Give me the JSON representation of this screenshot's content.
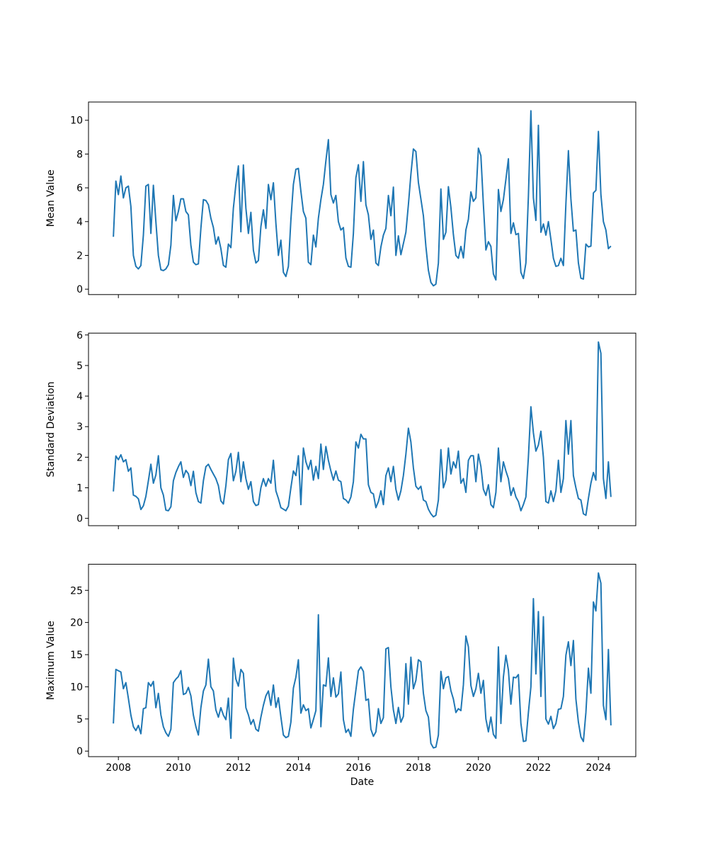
{
  "chart_data": {
    "type": "line",
    "title": "",
    "line_color": "#1f77b4",
    "background_color": "#ffffff",
    "text_color": "#000000",
    "grid": false,
    "legend": null,
    "x": {
      "label": "Date",
      "unit": "decimal_year_monthly",
      "start": 2007.8333,
      "step": 0.0833333,
      "ticks": [
        2008,
        2010,
        2012,
        2014,
        2016,
        2018,
        2020,
        2022,
        2024
      ],
      "lim": [
        2007.004,
        2025.246
      ]
    },
    "subplots": [
      {
        "ylabel": "Mean Value",
        "yticks": [
          0,
          2,
          4,
          6,
          8,
          10
        ],
        "ylim": [
          -0.32,
          11.08
        ],
        "values": [
          3.1,
          6.4,
          5.6,
          6.7,
          5.4,
          6.0,
          6.1,
          4.9,
          2.0,
          1.35,
          1.2,
          1.4,
          3.2,
          6.1,
          6.2,
          3.3,
          6.15,
          4.0,
          2.0,
          1.15,
          1.1,
          1.2,
          1.45,
          2.6,
          5.55,
          4.05,
          4.6,
          5.35,
          5.35,
          4.6,
          4.4,
          2.6,
          1.6,
          1.45,
          1.5,
          3.6,
          5.3,
          5.25,
          5.0,
          4.2,
          3.65,
          2.67,
          3.1,
          2.4,
          1.41,
          1.3,
          2.67,
          2.46,
          4.8,
          6.2,
          7.3,
          3.4,
          7.35,
          4.8,
          3.3,
          4.55,
          2.3,
          1.55,
          1.7,
          3.7,
          4.7,
          3.6,
          6.2,
          5.3,
          6.3,
          3.9,
          2.0,
          2.9,
          1.0,
          0.75,
          1.35,
          4.1,
          6.2,
          7.1,
          7.15,
          5.8,
          4.6,
          4.2,
          1.6,
          1.45,
          3.2,
          2.5,
          4.2,
          5.3,
          6.2,
          7.6,
          8.85,
          5.6,
          5.1,
          5.55,
          4.0,
          3.5,
          3.65,
          1.85,
          1.35,
          1.3,
          3.3,
          6.6,
          7.37,
          5.2,
          7.55,
          5.0,
          4.4,
          2.95,
          3.5,
          1.55,
          1.4,
          2.5,
          3.2,
          3.6,
          5.55,
          4.35,
          6.04,
          2.0,
          3.16,
          2.04,
          2.7,
          3.37,
          5.0,
          6.8,
          8.3,
          8.15,
          6.32,
          5.34,
          4.35,
          2.53,
          1.12,
          0.4,
          0.2,
          0.3,
          1.55,
          5.93,
          2.95,
          3.37,
          6.07,
          4.84,
          3.23,
          2.0,
          1.83,
          2.53,
          1.85,
          3.51,
          4.14,
          5.76,
          5.2,
          5.41,
          8.35,
          7.9,
          5.0,
          2.32,
          2.81,
          2.53,
          0.9,
          0.55,
          5.9,
          4.6,
          5.3,
          6.5,
          7.72,
          3.3,
          3.93,
          3.23,
          3.3,
          1.0,
          0.63,
          1.55,
          5.5,
          10.56,
          5.4,
          4.07,
          9.7,
          3.37,
          3.86,
          3.2,
          4.0,
          2.95,
          1.83,
          1.35,
          1.4,
          1.83,
          1.4,
          5.05,
          8.2,
          5.34,
          3.44,
          3.5,
          1.55,
          0.65,
          0.6,
          2.67,
          2.5,
          2.55,
          5.7,
          5.85,
          9.34,
          5.6,
          4.0,
          3.5,
          2.4,
          2.55
        ]
      },
      {
        "ylabel": "Standard Deviation",
        "yticks": [
          0,
          1,
          2,
          3,
          4,
          5,
          6
        ],
        "ylim": [
          -0.24,
          6.06
        ],
        "values": [
          0.88,
          2.04,
          1.92,
          2.08,
          1.85,
          1.92,
          1.54,
          1.65,
          0.76,
          0.72,
          0.64,
          0.29,
          0.41,
          0.72,
          1.23,
          1.77,
          1.15,
          1.42,
          2.05,
          1.0,
          0.76,
          0.27,
          0.25,
          0.38,
          1.23,
          1.5,
          1.69,
          1.85,
          1.34,
          1.57,
          1.46,
          1.07,
          1.54,
          0.84,
          0.55,
          0.5,
          1.23,
          1.69,
          1.77,
          1.6,
          1.45,
          1.3,
          1.07,
          0.57,
          0.47,
          1.07,
          1.92,
          2.12,
          1.23,
          1.54,
          2.16,
          1.2,
          1.85,
          1.3,
          0.95,
          1.2,
          0.55,
          0.42,
          0.45,
          1.0,
          1.3,
          1.05,
          1.3,
          1.15,
          1.9,
          0.9,
          0.65,
          0.35,
          0.3,
          0.25,
          0.4,
          1.0,
          1.55,
          1.4,
          2.05,
          0.45,
          2.3,
          1.85,
          1.6,
          1.9,
          1.25,
          1.7,
          1.3,
          2.43,
          1.6,
          2.35,
          1.9,
          1.55,
          1.25,
          1.55,
          1.25,
          1.2,
          0.65,
          0.6,
          0.5,
          0.7,
          1.2,
          2.5,
          2.3,
          2.75,
          2.6,
          2.6,
          1.1,
          0.85,
          0.8,
          0.35,
          0.55,
          0.9,
          0.45,
          1.4,
          1.65,
          1.2,
          1.7,
          0.95,
          0.6,
          0.9,
          1.4,
          2.1,
          2.95,
          2.5,
          1.65,
          1.05,
          0.95,
          1.05,
          0.6,
          0.55,
          0.3,
          0.15,
          0.05,
          0.1,
          0.6,
          2.25,
          1.0,
          1.25,
          2.3,
          1.45,
          1.85,
          1.65,
          2.2,
          1.15,
          1.3,
          0.85,
          1.9,
          2.05,
          2.05,
          1.2,
          2.1,
          1.7,
          0.95,
          0.75,
          1.1,
          0.45,
          0.35,
          0.85,
          2.3,
          1.2,
          1.85,
          1.55,
          1.3,
          0.75,
          1.0,
          0.7,
          0.55,
          0.25,
          0.45,
          0.7,
          2.0,
          3.65,
          2.8,
          2.2,
          2.4,
          2.85,
          2.0,
          0.55,
          0.5,
          0.9,
          0.55,
          0.9,
          1.9,
          0.85,
          1.3,
          3.2,
          2.1,
          3.2,
          1.4,
          1.0,
          0.65,
          0.6,
          0.15,
          0.1,
          0.65,
          1.15,
          1.5,
          1.25,
          5.77,
          5.4,
          1.3,
          0.65,
          1.85,
          0.7
        ]
      },
      {
        "ylabel": "Maximum Value",
        "yticks": [
          0,
          5,
          10,
          15,
          20,
          25
        ],
        "ylim": [
          -0.86,
          29.06
        ],
        "values": [
          4.3,
          12.7,
          12.5,
          12.3,
          9.7,
          10.65,
          8.2,
          5.6,
          3.8,
          3.2,
          4.0,
          2.7,
          6.6,
          6.75,
          10.65,
          10.1,
          10.84,
          6.75,
          8.98,
          5.65,
          3.78,
          2.85,
          2.3,
          3.4,
          10.65,
          11.2,
          11.6,
          12.5,
          8.8,
          9.0,
          9.9,
          8.6,
          5.6,
          3.8,
          2.5,
          6.75,
          9.35,
          10.28,
          14.3,
          10.0,
          9.35,
          6.4,
          5.27,
          6.75,
          5.6,
          4.9,
          8.24,
          2.0,
          14.45,
          11.2,
          10.1,
          12.7,
          12.1,
          6.75,
          5.64,
          4.16,
          4.9,
          3.41,
          3.1,
          5.27,
          7.12,
          8.6,
          9.35,
          7.12,
          10.28,
          6.8,
          8.3,
          5.3,
          2.5,
          2.1,
          2.3,
          4.5,
          9.8,
          11.5,
          14.2,
          5.9,
          7.2,
          6.3,
          6.6,
          3.6,
          4.9,
          6.3,
          21.2,
          3.8,
          10.3,
          10.1,
          14.5,
          8.5,
          11.4,
          8.4,
          8.9,
          12.3,
          4.9,
          2.9,
          3.4,
          2.3,
          6.5,
          9.5,
          12.5,
          13.1,
          12.4,
          7.9,
          8.1,
          3.4,
          2.3,
          3.0,
          6.6,
          4.3,
          5.2,
          15.9,
          16.1,
          10.0,
          6.4,
          4.3,
          6.8,
          4.5,
          5.4,
          13.6,
          7.3,
          14.6,
          9.7,
          11.0,
          14.2,
          13.9,
          9.0,
          6.3,
          5.3,
          1.2,
          0.5,
          0.62,
          2.5,
          12.4,
          9.7,
          11.4,
          11.6,
          9.4,
          8.1,
          6.0,
          6.6,
          6.3,
          10.3,
          17.9,
          16.2,
          10.2,
          8.5,
          9.7,
          12.1,
          9.0,
          11.0,
          5.0,
          3.0,
          5.3,
          2.6,
          2.0,
          16.2,
          4.3,
          11.5,
          14.9,
          12.6,
          7.3,
          11.5,
          11.4,
          11.9,
          4.3,
          1.5,
          1.6,
          6.0,
          10.0,
          23.7,
          12.0,
          21.7,
          8.5,
          20.9,
          5.0,
          4.2,
          5.4,
          3.5,
          4.3,
          6.5,
          6.6,
          8.5,
          14.9,
          17.0,
          13.3,
          17.2,
          8.1,
          4.5,
          2.2,
          1.5,
          6.0,
          12.9,
          9.0,
          23.2,
          21.8,
          27.7,
          26.1,
          7.1,
          4.9,
          15.8,
          4.0
        ]
      }
    ]
  }
}
